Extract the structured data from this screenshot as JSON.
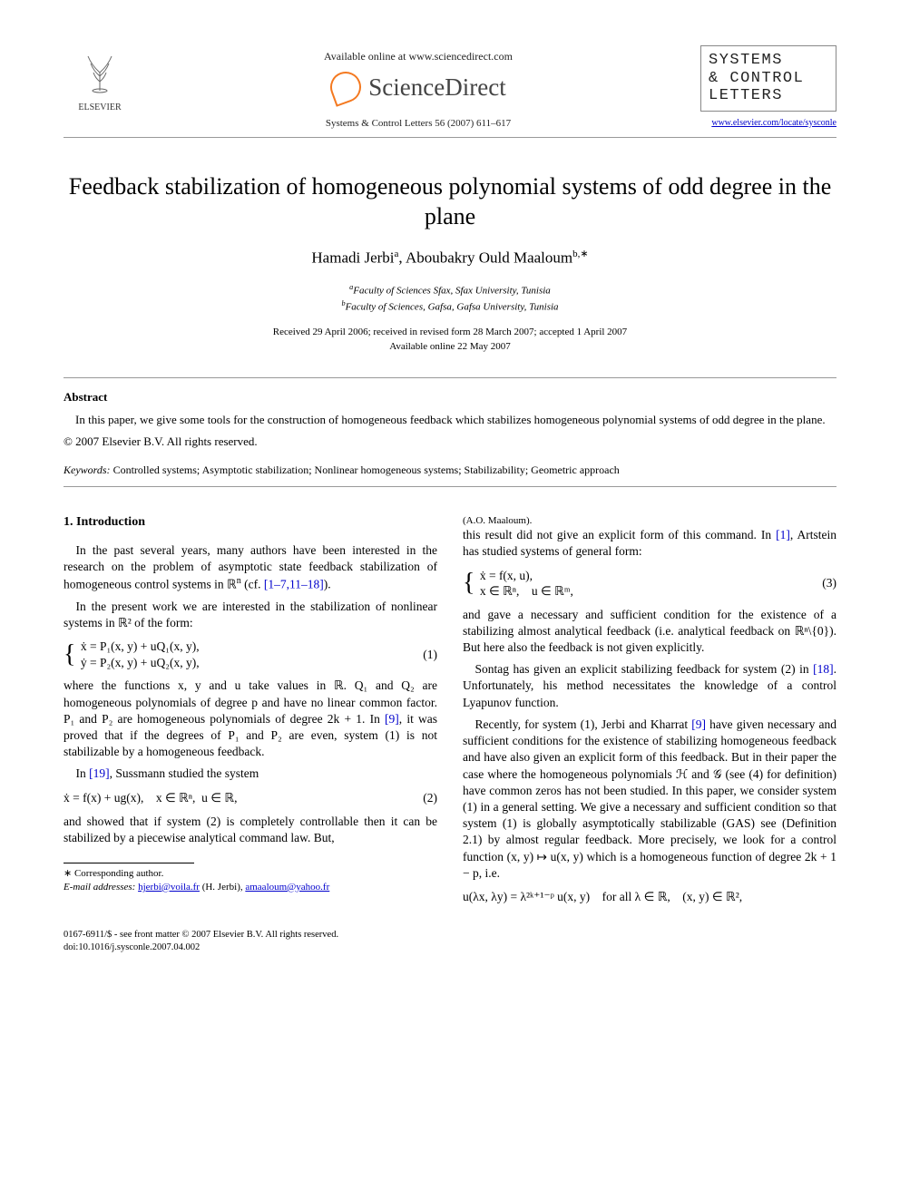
{
  "header": {
    "available_text": "Available online at www.sciencedirect.com",
    "sd_label": "ScienceDirect",
    "journal_ref": "Systems & Control Letters 56 (2007) 611–617",
    "elsevier_label": "ELSEVIER",
    "journal_logo_line1": "SYSTEMS",
    "journal_logo_line2": "& CONTROL",
    "journal_logo_line3": "LETTERS",
    "journal_url": "www.elsevier.com/locate/sysconle"
  },
  "title": "Feedback stabilization of homogeneous polynomial systems of odd degree in the plane",
  "authors_html": "Hamadi Jerbi<sup>a</sup>, Aboubakry Ould Maaloum<sup>b,∗</sup>",
  "affiliations": {
    "a": "Faculty of Sciences Sfax, Sfax University, Tunisia",
    "b": "Faculty of Sciences, Gafsa, Gafsa University, Tunisia"
  },
  "dates": {
    "received": "Received 29 April 2006; received in revised form 28 March 2007; accepted 1 April 2007",
    "online": "Available online 22 May 2007"
  },
  "abstract": {
    "heading": "Abstract",
    "body": "In this paper, we give some tools for the construction of homogeneous feedback which stabilizes homogeneous polynomial systems of odd degree in the plane.",
    "copyright": "© 2007 Elsevier B.V. All rights reserved."
  },
  "keywords": {
    "label": "Keywords:",
    "text": "Controlled systems; Asymptotic stabilization; Nonlinear homogeneous systems; Stabilizability; Geometric approach"
  },
  "section1": {
    "heading": "1. Introduction",
    "p1_a": "In the past several years, many authors have been interested in the research on the problem of asymptotic state feedback stabilization of homogeneous control systems in ℝ",
    "p1_sup": "n",
    "p1_b": " (cf. ",
    "p1_refs": "[1–7,11–18]",
    "p1_c": ").",
    "p2": "In the present work we are interested in the stabilization of nonlinear systems in ℝ² of the form:",
    "eq1_l1": "ẋ = P₁(x, y) + uQ₁(x, y),",
    "eq1_l2": "ẏ = P₂(x, y) + uQ₂(x, y),",
    "eq1_num": "(1)",
    "p3_a": "where the functions x, y and u take values in ℝ. Q₁ and Q₂ are homogeneous polynomials of degree p and have no linear common factor. P₁ and P₂ are homogeneous polynomials of degree 2k + 1. In ",
    "p3_ref": "[9]",
    "p3_b": ", it was proved that if the degrees of P₁ and P₂ are even, system (1) is not stabilizable by a homogeneous feedback.",
    "p4_a": "In ",
    "p4_ref": "[19]",
    "p4_b": ", Sussmann studied the system",
    "eq2": "ẋ = f(x) + ug(x), x ∈ ℝⁿ, u ∈ ℝ,",
    "eq2_num": "(2)",
    "p5": "and showed that if system (2) is completely controllable then it can be stabilized by a piecewise analytical command law. But,",
    "col2_p1_a": "this result did not give an explicit form of this command. In ",
    "col2_p1_ref": "[1]",
    "col2_p1_b": ", Artstein has studied systems of general form:",
    "eq3_l1": "ẋ = f(x, u),",
    "eq3_l2": "x ∈ ℝⁿ, u ∈ ℝᵐ,",
    "eq3_num": "(3)",
    "col2_p2": "and gave a necessary and sufficient condition for the existence of a stabilizing almost analytical feedback (i.e. analytical feedback on ℝⁿ\\{0}). But here also the feedback is not given explicitly.",
    "col2_p3_a": "Sontag has given an explicit stabilizing feedback for system (2) in ",
    "col2_p3_ref": "[18]",
    "col2_p3_b": ". Unfortunately, his method necessitates the knowledge of a control Lyapunov function.",
    "col2_p4_a": "Recently, for system (1), Jerbi and Kharrat ",
    "col2_p4_ref": "[9]",
    "col2_p4_b": " have given necessary and sufficient conditions for the existence of stabilizing homogeneous feedback and have also given an explicit form of this feedback. But in their paper the case where the homogeneous polynomials ℋ and 𝒢 (see (4) for definition) have common zeros has not been studied. In this paper, we consider system (1) in a general setting. We give a necessary and sufficient condition so that system (1) is globally asymptotically stabilizable (GAS) see (Definition 2.1) by almost regular feedback. More precisely, we look for a control function (x, y) ↦ u(x, y) which is a homogeneous function of degree 2k + 1 − p, i.e.",
    "eq4": "u(λx, λy) = λ²ᵏ⁺¹⁻ᵖ u(x, y) for all λ ∈ ℝ, (x, y) ∈ ℝ²,"
  },
  "footnote": {
    "corr": "∗ Corresponding author.",
    "email_label": "E-mail addresses:",
    "email1": "hjerbi@voila.fr",
    "email1_who": "(H. Jerbi),",
    "email2": "amaaloum@yahoo.fr",
    "email2_who": "(A.O. Maaloum)."
  },
  "bottom": {
    "line1": "0167-6911/$ - see front matter © 2007 Elsevier B.V. All rights reserved.",
    "line2": "doi:10.1016/j.sysconle.2007.04.002"
  }
}
